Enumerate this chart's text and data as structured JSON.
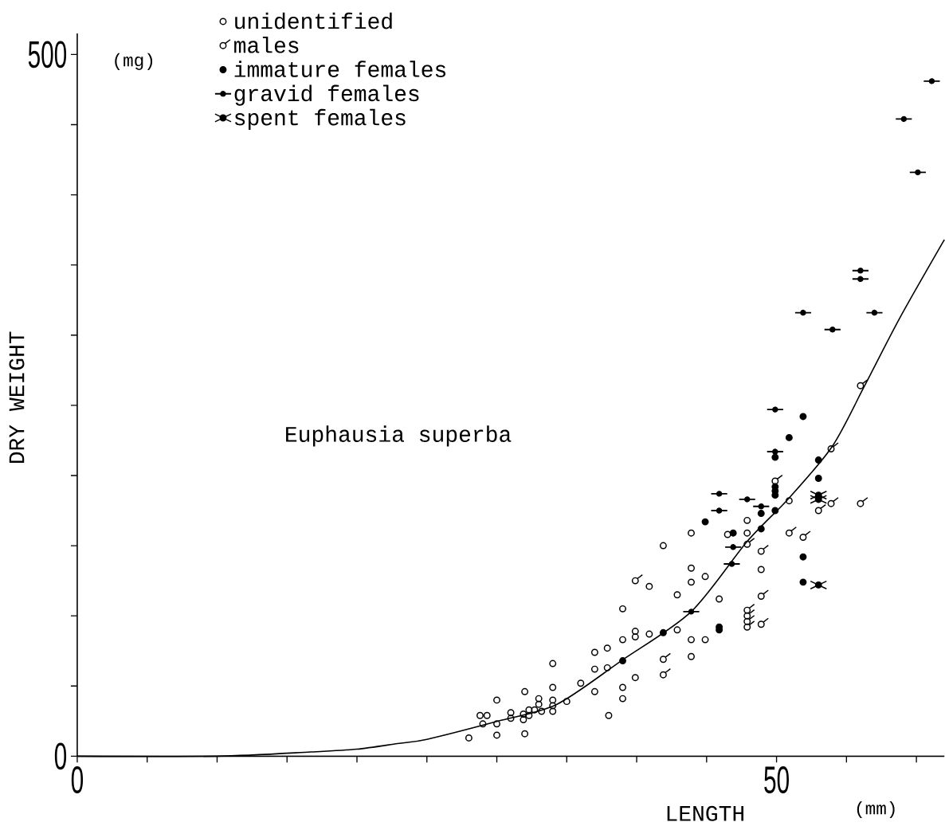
{
  "chart_data": {
    "type": "scatter",
    "xlabel": "LENGTH",
    "ylabel": "DRY WEIGHT",
    "annotations": [
      "Euphausia superba",
      "(mg)",
      "(mm)"
    ],
    "xlim": [
      0,
      62
    ],
    "ylim": [
      0,
      515
    ],
    "xticks": [
      0,
      {
        "value": 5,
        "label": null
      },
      {
        "value": 10,
        "label": null
      },
      {
        "value": 15,
        "label": null
      },
      {
        "value": 20,
        "label": null
      },
      {
        "value": 25,
        "label": null
      },
      {
        "value": 30,
        "label": null
      },
      {
        "value": 35,
        "label": null
      },
      {
        "value": 40,
        "label": null
      },
      {
        "value": 45,
        "label": null
      },
      50,
      {
        "value": 55,
        "label": null
      },
      {
        "value": 60,
        "label": null
      }
    ],
    "yticks": [
      0,
      {
        "value": 50,
        "label": null
      },
      {
        "value": 100,
        "label": null
      },
      {
        "value": 150,
        "label": null
      },
      {
        "value": 200,
        "label": null
      },
      {
        "value": 250,
        "label": null
      },
      {
        "value": 300,
        "label": null
      },
      {
        "value": 350,
        "label": null
      },
      {
        "value": 400,
        "label": null
      },
      {
        "value": 450,
        "label": null
      },
      500
    ],
    "grid": false,
    "legend": "top left",
    "series": [
      {
        "name": "unidentified",
        "color": "#000000",
        "x": [
          28.0,
          30.0,
          32.0,
          28.8,
          29.3,
          29.0,
          30.0,
          30.0,
          31.0,
          31.0,
          32.0,
          31.9,
          31.9,
          32.3,
          32.3,
          32.7,
          33.0,
          33.0,
          33.2,
          34.0,
          34.0,
          34.0,
          34.0,
          34.0,
          35.0,
          36.0,
          37.0,
          37.0,
          37.0,
          37.9,
          37.9,
          38.0,
          39.0,
          39.0,
          39.0,
          39.0,
          40.9,
          39.9,
          39.9,
          39.9,
          40.9,
          41.9,
          42.9,
          42.9,
          43.9,
          43.9,
          43.9,
          43.9,
          43.9,
          44.9,
          44.9,
          45.9,
          46.5,
          47.9,
          47.9,
          48.9,
          50.9
        ],
        "values": [
          13,
          15,
          16,
          29,
          29,
          23,
          23,
          40,
          31,
          27,
          46,
          30,
          26,
          33,
          29,
          33,
          41,
          37,
          32,
          66,
          49,
          40,
          36,
          32,
          39,
          52,
          74,
          62,
          46,
          77,
          63,
          29,
          83,
          105,
          49,
          41,
          121,
          89,
          85,
          56,
          87,
          150,
          115,
          90,
          159,
          134,
          124,
          83,
          71,
          128,
          83,
          112,
          158,
          168,
          159,
          133,
          182
        ]
      },
      {
        "name": "males",
        "color": "#000000",
        "x": [
          39.9,
          41.9,
          41.9,
          47.9,
          48.9,
          48.9,
          47.9,
          47.9,
          47.9,
          47.9,
          48.9,
          49.9,
          50.9,
          51.9,
          53.9,
          53.9,
          53.0,
          56.0,
          56.0
        ],
        "values": [
          125,
          69,
          58,
          151,
          146,
          114,
          104,
          100,
          96,
          92,
          94,
          196,
          159,
          156,
          219,
          180,
          175,
          180,
          264
        ]
      },
      {
        "name": "immature females",
        "color": "#000000",
        "x": [
          39.0,
          41.9,
          44.9,
          45.9,
          45.9,
          46.9,
          48.9,
          48.9,
          49.9,
          49.9,
          49.9,
          49.9,
          49.9,
          50.9,
          51.9,
          53.0,
          53.0,
          51.9,
          51.9
        ],
        "values": [
          68,
          88,
          167,
          92,
          90,
          159,
          162,
          173,
          192,
          189,
          186,
          175,
          213,
          227,
          242,
          211,
          198,
          142,
          124
        ]
      },
      {
        "name": "gravid females",
        "color": "#000000",
        "x": [
          43.9,
          45.9,
          45.9,
          46.8,
          46.9,
          47.9,
          48.9,
          49.9,
          49.9,
          51.9,
          54.0,
          56.0,
          56.0,
          57.0,
          59.1,
          60.1,
          61.1
        ],
        "values": [
          103,
          187,
          175,
          137,
          149,
          183,
          178,
          247,
          217,
          316,
          304,
          346,
          340,
          316,
          454,
          416,
          481
        ]
      },
      {
        "name": "spent females",
        "color": "#000000",
        "x": [
          53.0,
          53.0,
          53.0
        ],
        "values": [
          186,
          183,
          122
        ]
      },
      {
        "type": "line",
        "marker": "none",
        "color": "#000000",
        "x": [
          0,
          10,
          16.7,
          20,
          22.9,
          25,
          30.1,
          34.3,
          38.9,
          43.9,
          47.9,
          50.9,
          54.0,
          56.3,
          58.8,
          62.0
        ],
        "values": [
          0,
          0,
          3,
          5,
          9,
          12,
          25,
          37,
          68,
          103,
          153,
          184,
          221,
          264,
          312,
          368
        ]
      }
    ]
  }
}
